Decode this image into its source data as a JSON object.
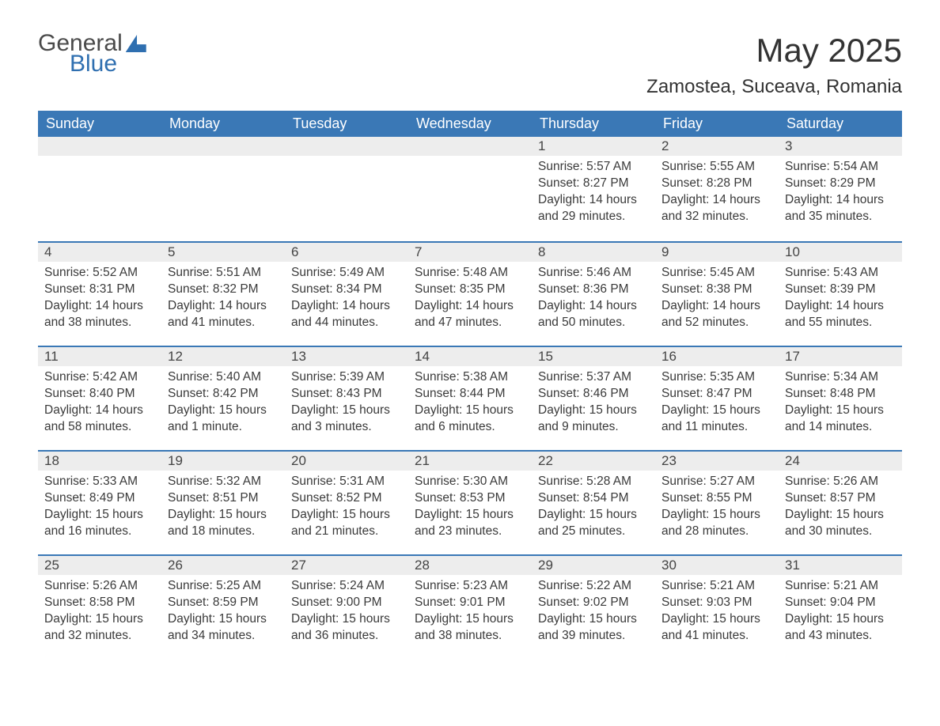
{
  "logo": {
    "general": "General",
    "blue": "Blue"
  },
  "header": {
    "month_title": "May 2025",
    "location": "Zamostea, Suceava, Romania"
  },
  "calendar": {
    "day_headers": [
      "Sunday",
      "Monday",
      "Tuesday",
      "Wednesday",
      "Thursday",
      "Friday",
      "Saturday"
    ],
    "header_bg": "#3a78b6",
    "header_fg": "#ffffff",
    "stripe_bg": "#ededed",
    "accent_border": "#3a78b6",
    "weeks": [
      [
        null,
        null,
        null,
        null,
        {
          "n": "1",
          "sunrise": "Sunrise: 5:57 AM",
          "sunset": "Sunset: 8:27 PM",
          "day": "Daylight: 14 hours and 29 minutes."
        },
        {
          "n": "2",
          "sunrise": "Sunrise: 5:55 AM",
          "sunset": "Sunset: 8:28 PM",
          "day": "Daylight: 14 hours and 32 minutes."
        },
        {
          "n": "3",
          "sunrise": "Sunrise: 5:54 AM",
          "sunset": "Sunset: 8:29 PM",
          "day": "Daylight: 14 hours and 35 minutes."
        }
      ],
      [
        {
          "n": "4",
          "sunrise": "Sunrise: 5:52 AM",
          "sunset": "Sunset: 8:31 PM",
          "day": "Daylight: 14 hours and 38 minutes."
        },
        {
          "n": "5",
          "sunrise": "Sunrise: 5:51 AM",
          "sunset": "Sunset: 8:32 PM",
          "day": "Daylight: 14 hours and 41 minutes."
        },
        {
          "n": "6",
          "sunrise": "Sunrise: 5:49 AM",
          "sunset": "Sunset: 8:34 PM",
          "day": "Daylight: 14 hours and 44 minutes."
        },
        {
          "n": "7",
          "sunrise": "Sunrise: 5:48 AM",
          "sunset": "Sunset: 8:35 PM",
          "day": "Daylight: 14 hours and 47 minutes."
        },
        {
          "n": "8",
          "sunrise": "Sunrise: 5:46 AM",
          "sunset": "Sunset: 8:36 PM",
          "day": "Daylight: 14 hours and 50 minutes."
        },
        {
          "n": "9",
          "sunrise": "Sunrise: 5:45 AM",
          "sunset": "Sunset: 8:38 PM",
          "day": "Daylight: 14 hours and 52 minutes."
        },
        {
          "n": "10",
          "sunrise": "Sunrise: 5:43 AM",
          "sunset": "Sunset: 8:39 PM",
          "day": "Daylight: 14 hours and 55 minutes."
        }
      ],
      [
        {
          "n": "11",
          "sunrise": "Sunrise: 5:42 AM",
          "sunset": "Sunset: 8:40 PM",
          "day": "Daylight: 14 hours and 58 minutes."
        },
        {
          "n": "12",
          "sunrise": "Sunrise: 5:40 AM",
          "sunset": "Sunset: 8:42 PM",
          "day": "Daylight: 15 hours and 1 minute."
        },
        {
          "n": "13",
          "sunrise": "Sunrise: 5:39 AM",
          "sunset": "Sunset: 8:43 PM",
          "day": "Daylight: 15 hours and 3 minutes."
        },
        {
          "n": "14",
          "sunrise": "Sunrise: 5:38 AM",
          "sunset": "Sunset: 8:44 PM",
          "day": "Daylight: 15 hours and 6 minutes."
        },
        {
          "n": "15",
          "sunrise": "Sunrise: 5:37 AM",
          "sunset": "Sunset: 8:46 PM",
          "day": "Daylight: 15 hours and 9 minutes."
        },
        {
          "n": "16",
          "sunrise": "Sunrise: 5:35 AM",
          "sunset": "Sunset: 8:47 PM",
          "day": "Daylight: 15 hours and 11 minutes."
        },
        {
          "n": "17",
          "sunrise": "Sunrise: 5:34 AM",
          "sunset": "Sunset: 8:48 PM",
          "day": "Daylight: 15 hours and 14 minutes."
        }
      ],
      [
        {
          "n": "18",
          "sunrise": "Sunrise: 5:33 AM",
          "sunset": "Sunset: 8:49 PM",
          "day": "Daylight: 15 hours and 16 minutes."
        },
        {
          "n": "19",
          "sunrise": "Sunrise: 5:32 AM",
          "sunset": "Sunset: 8:51 PM",
          "day": "Daylight: 15 hours and 18 minutes."
        },
        {
          "n": "20",
          "sunrise": "Sunrise: 5:31 AM",
          "sunset": "Sunset: 8:52 PM",
          "day": "Daylight: 15 hours and 21 minutes."
        },
        {
          "n": "21",
          "sunrise": "Sunrise: 5:30 AM",
          "sunset": "Sunset: 8:53 PM",
          "day": "Daylight: 15 hours and 23 minutes."
        },
        {
          "n": "22",
          "sunrise": "Sunrise: 5:28 AM",
          "sunset": "Sunset: 8:54 PM",
          "day": "Daylight: 15 hours and 25 minutes."
        },
        {
          "n": "23",
          "sunrise": "Sunrise: 5:27 AM",
          "sunset": "Sunset: 8:55 PM",
          "day": "Daylight: 15 hours and 28 minutes."
        },
        {
          "n": "24",
          "sunrise": "Sunrise: 5:26 AM",
          "sunset": "Sunset: 8:57 PM",
          "day": "Daylight: 15 hours and 30 minutes."
        }
      ],
      [
        {
          "n": "25",
          "sunrise": "Sunrise: 5:26 AM",
          "sunset": "Sunset: 8:58 PM",
          "day": "Daylight: 15 hours and 32 minutes."
        },
        {
          "n": "26",
          "sunrise": "Sunrise: 5:25 AM",
          "sunset": "Sunset: 8:59 PM",
          "day": "Daylight: 15 hours and 34 minutes."
        },
        {
          "n": "27",
          "sunrise": "Sunrise: 5:24 AM",
          "sunset": "Sunset: 9:00 PM",
          "day": "Daylight: 15 hours and 36 minutes."
        },
        {
          "n": "28",
          "sunrise": "Sunrise: 5:23 AM",
          "sunset": "Sunset: 9:01 PM",
          "day": "Daylight: 15 hours and 38 minutes."
        },
        {
          "n": "29",
          "sunrise": "Sunrise: 5:22 AM",
          "sunset": "Sunset: 9:02 PM",
          "day": "Daylight: 15 hours and 39 minutes."
        },
        {
          "n": "30",
          "sunrise": "Sunrise: 5:21 AM",
          "sunset": "Sunset: 9:03 PM",
          "day": "Daylight: 15 hours and 41 minutes."
        },
        {
          "n": "31",
          "sunrise": "Sunrise: 5:21 AM",
          "sunset": "Sunset: 9:04 PM",
          "day": "Daylight: 15 hours and 43 minutes."
        }
      ]
    ]
  }
}
